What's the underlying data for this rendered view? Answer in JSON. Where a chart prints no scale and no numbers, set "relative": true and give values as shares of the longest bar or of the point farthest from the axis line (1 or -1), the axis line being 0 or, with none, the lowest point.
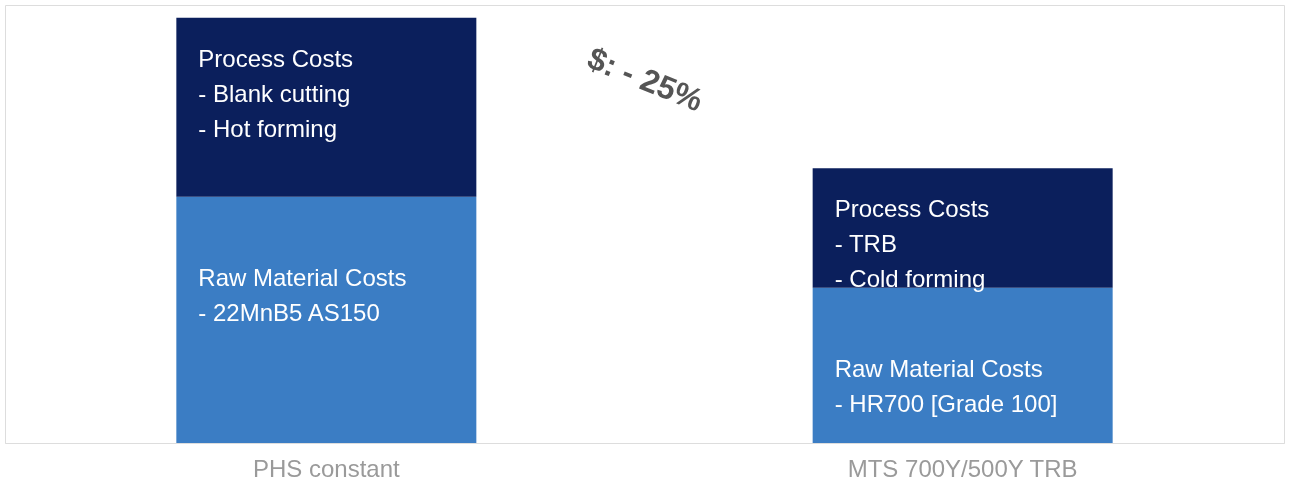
{
  "chart_data": {
    "type": "bar",
    "stacked": true,
    "relative": true,
    "categories": [
      "PHS constant",
      "MTS 700Y/500Y TRB"
    ],
    "series": [
      {
        "color": "#3b7dc4",
        "values": [
          0.579,
          0.365
        ]
      },
      {
        "color": "#0b1f5c",
        "values": [
          0.421,
          0.281
        ]
      }
    ],
    "annotations": [
      "Process Costs\n- Blank cutting\n- Hot forming",
      "Raw Material Costs\n- 22MnB5 AS150",
      "Process Costs\n-     TRB\n-     Cold forming",
      "Raw Material Costs\n- HR700 [Grade 100]",
      "$: - 25%"
    ]
  }
}
